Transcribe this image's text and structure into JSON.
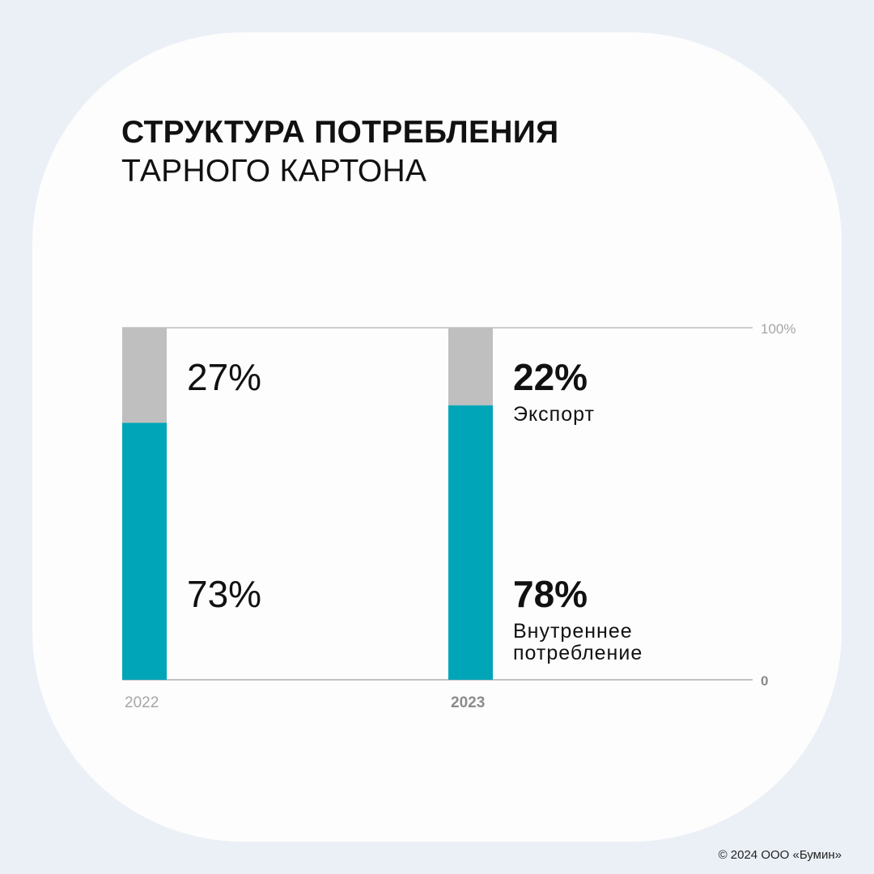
{
  "title": {
    "line1": "СТРУКТУРА ПОТРЕБЛЕНИЯ",
    "line2": "ТАРНОГО КАРТОНА"
  },
  "colors": {
    "background": "#ebf0f7",
    "card": "#fdfdfd",
    "domestic": "#00a5b8",
    "export": "#bfbfbf",
    "axis": "#9e9e9e",
    "text": "#111111",
    "muted": "#9a9a9a"
  },
  "footer": "© 2024 ООО «Бумин»",
  "chart_data": {
    "type": "bar",
    "stacked": true,
    "categories": [
      "2022",
      "2023"
    ],
    "series": [
      {
        "name": "Внутреннее потребление",
        "values": [
          73,
          78
        ],
        "labels": [
          "73%",
          "78%"
        ],
        "color": "#00a5b8"
      },
      {
        "name": "Экспорт",
        "values": [
          27,
          22
        ],
        "labels": [
          "27%",
          "22%"
        ],
        "color": "#bfbfbf"
      }
    ],
    "y_ticks": [
      "0",
      "100%"
    ],
    "ylim": [
      0,
      100
    ],
    "highlight_category": "2023",
    "grid": false
  }
}
